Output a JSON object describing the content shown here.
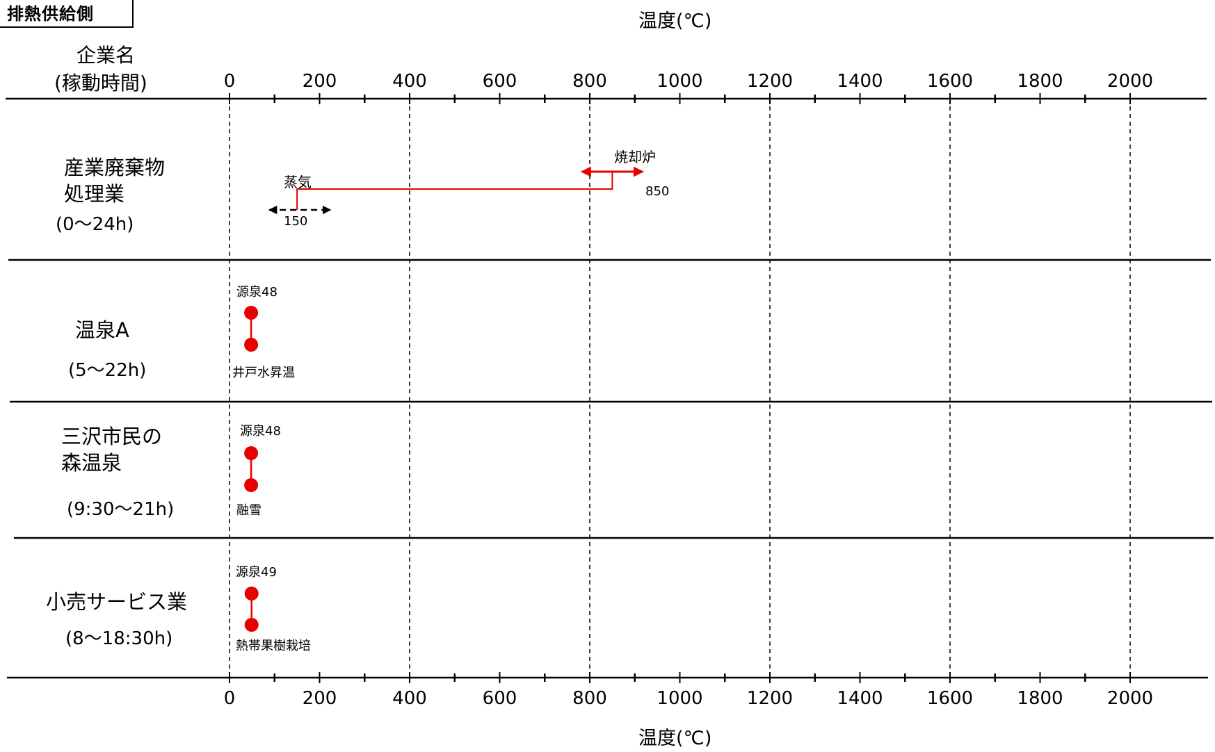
{
  "corner_label": "排熱供給側",
  "axis_title_top": "温度(℃)",
  "axis_title_bottom": "温度(℃)",
  "header": {
    "line1": "企業名",
    "line2": "(稼動時間)"
  },
  "colors": {
    "accent": "#e60000",
    "line": "#000000",
    "background": "#ffffff"
  },
  "chart_data": {
    "type": "range",
    "xlabel": "温度(℃)",
    "xlim": [
      0,
      2100
    ],
    "xticks": [
      0,
      200,
      400,
      600,
      800,
      1000,
      1200,
      1400,
      1600,
      1800,
      2000
    ],
    "minor_ticks": [
      100,
      300,
      500,
      700,
      900,
      1100,
      1300,
      1500,
      1700,
      1900
    ],
    "gridlines_x": [
      0,
      400,
      800,
      1200,
      1600,
      2000
    ],
    "rows": [
      {
        "name_lines": [
          "産業廃棄物",
          "処理業"
        ],
        "hours": "(0〜24h)",
        "segment": {
          "from": 150,
          "to": 850
        },
        "high": {
          "label": "焼却炉",
          "value": 850,
          "value_label": "850"
        },
        "low": {
          "label": "蒸気",
          "value": 150,
          "value_label": "150"
        }
      },
      {
        "name_lines": [
          "温泉A"
        ],
        "hours": "(5〜22h)",
        "segment": {
          "from": 48,
          "to": 48
        },
        "high": {
          "label": "源泉48",
          "value": 48
        },
        "low": {
          "label": "井戸水昇温"
        }
      },
      {
        "name_lines": [
          "三沢市民の",
          "森温泉"
        ],
        "hours": "(9:30〜21h)",
        "segment": {
          "from": 48,
          "to": 48
        },
        "high": {
          "label": "源泉48",
          "value": 48
        },
        "low": {
          "label": "融雪"
        }
      },
      {
        "name_lines": [
          "小売サービス業"
        ],
        "hours": "(8〜18:30h)",
        "segment": {
          "from": 49,
          "to": 49
        },
        "high": {
          "label": "源泉49",
          "value": 49
        },
        "low": {
          "label": "熱帯果樹栽培"
        }
      }
    ]
  }
}
